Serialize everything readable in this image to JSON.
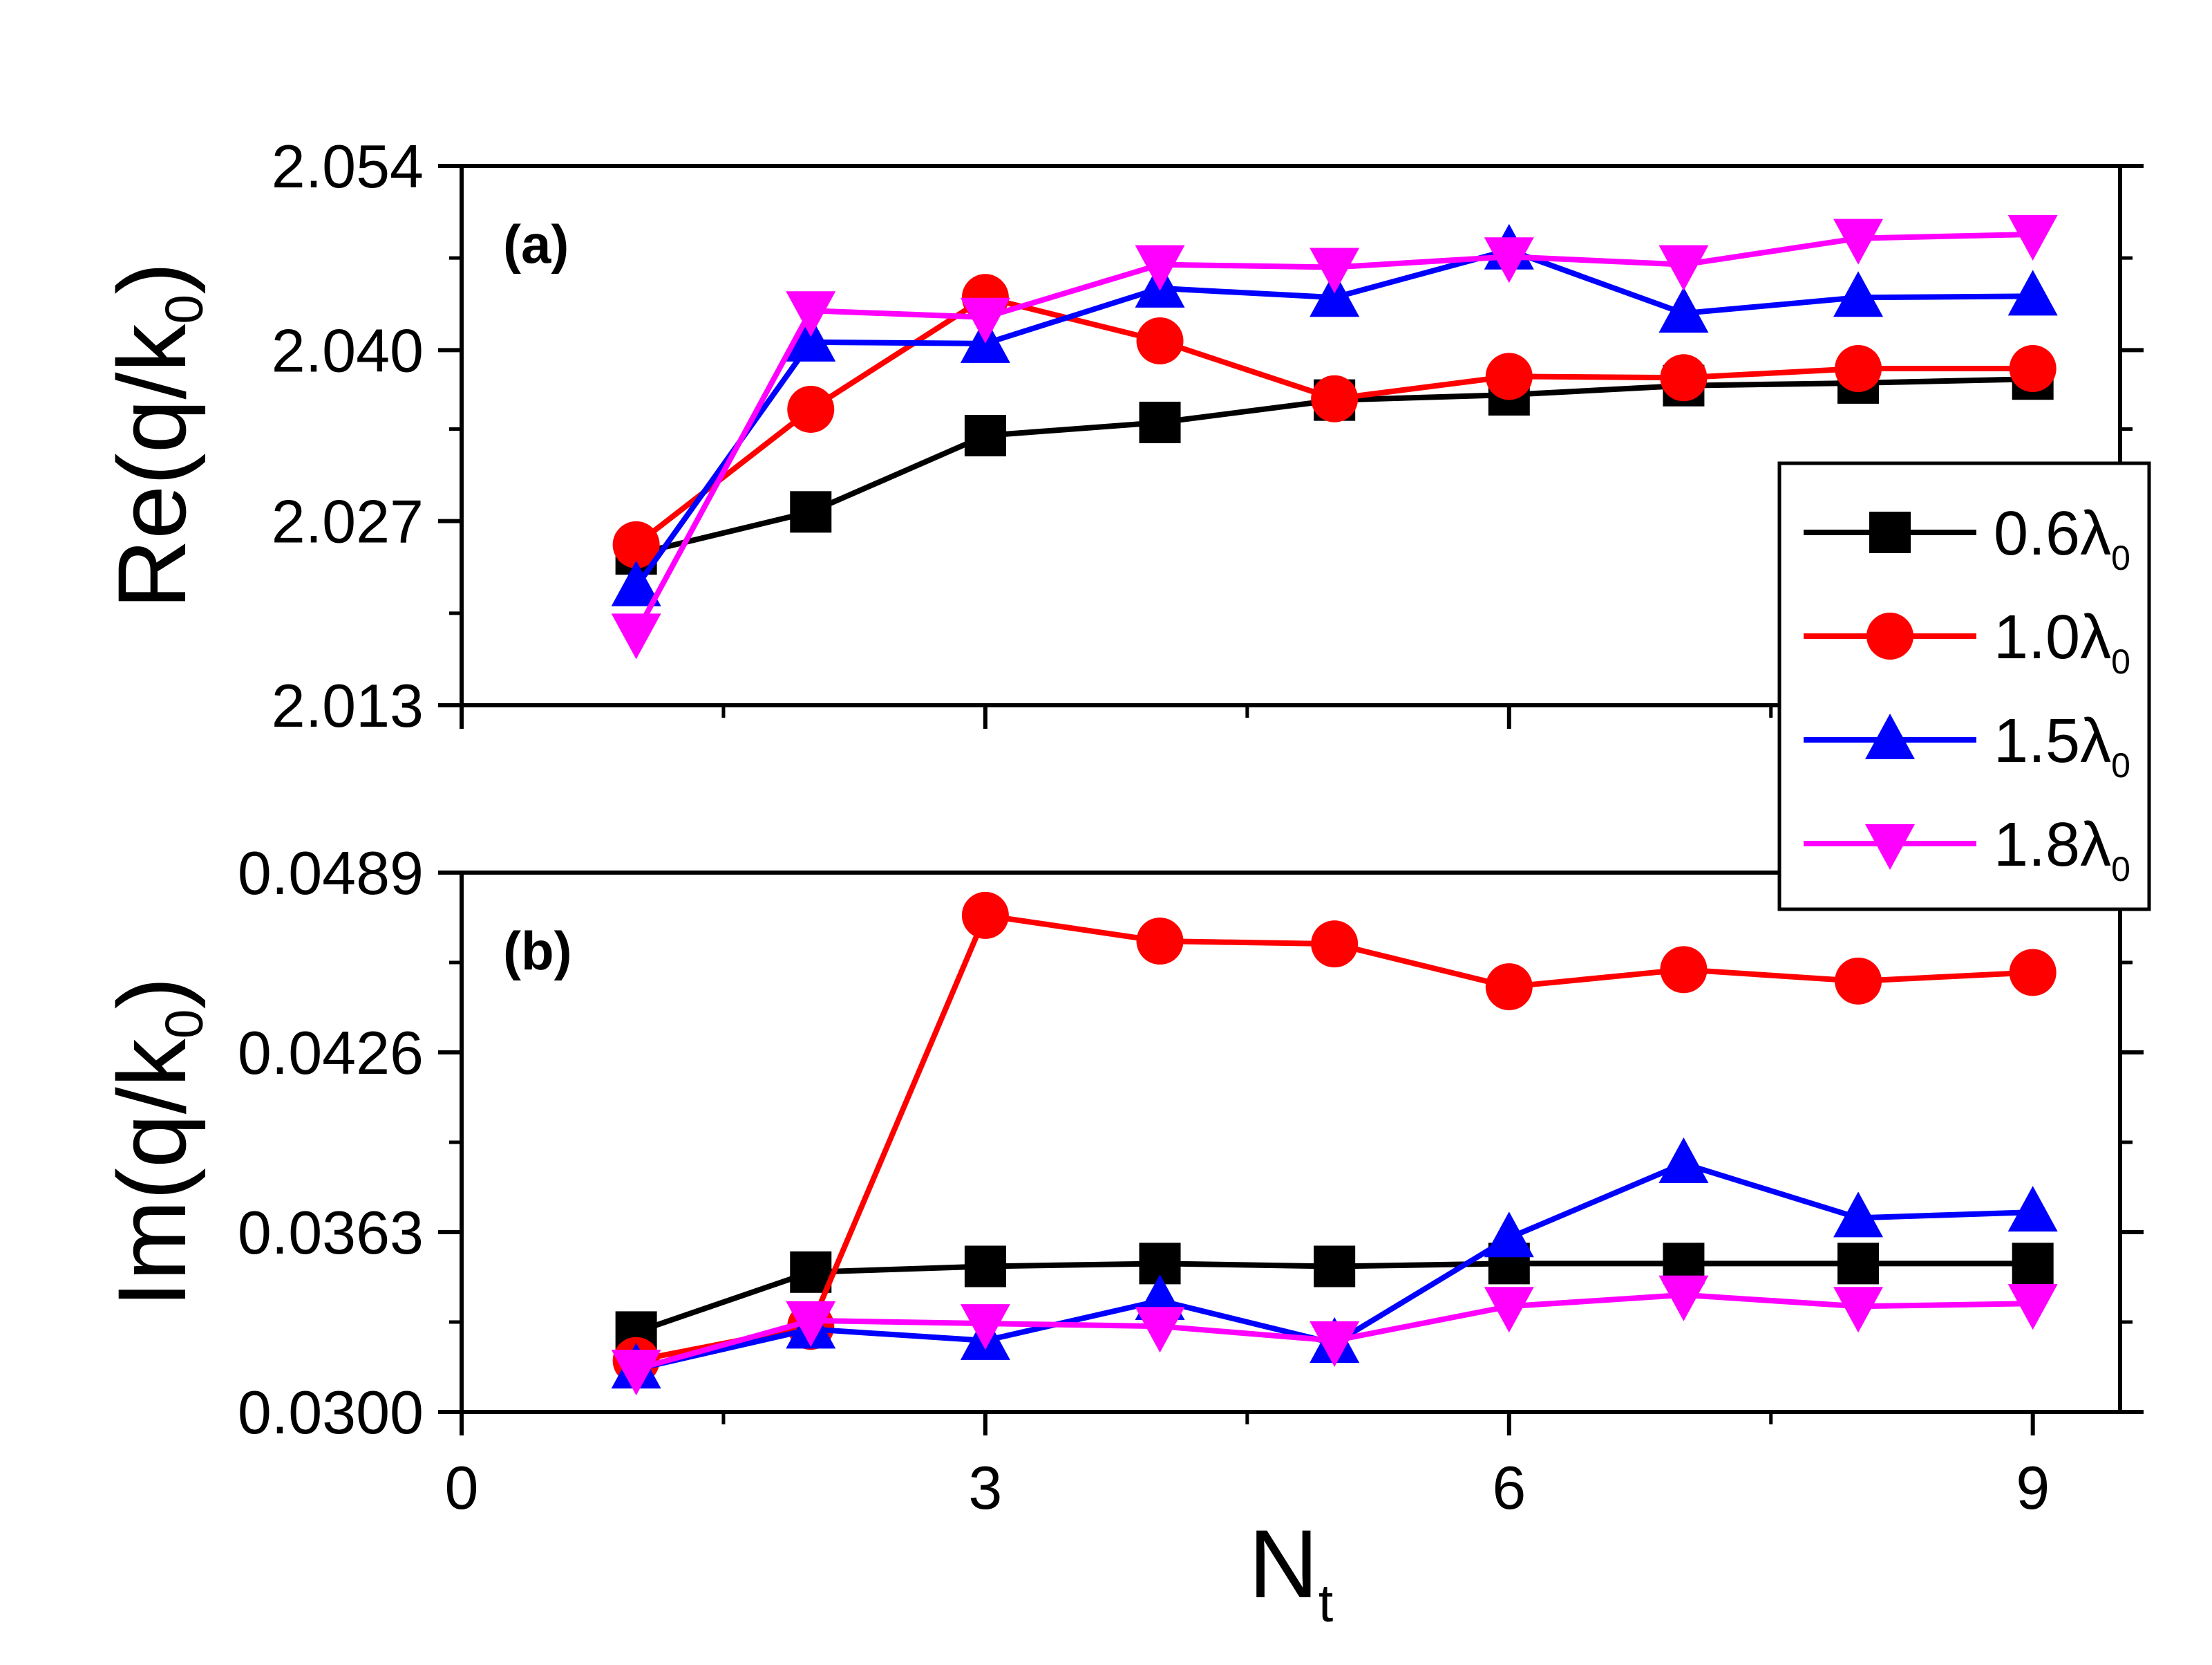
{
  "chart_data": [
    {
      "panel": "(a)",
      "type": "line",
      "xlabel": "N",
      "xlabel_subscript": "t",
      "ylabel": "Re(q/k",
      "ylabel_subscript": "0",
      "ylabel_suffix": ")",
      "xlim": [
        0,
        9.5
      ],
      "ylim": [
        2.013,
        2.054
      ],
      "xticks": [
        "0",
        "3",
        "6",
        "9"
      ],
      "yticks": [
        "2.013",
        "2.027",
        "2.040",
        "2.054"
      ],
      "x": [
        1,
        2,
        3,
        4,
        5,
        6,
        7,
        8,
        9
      ],
      "series": [
        {
          "name": "0.6λ₀",
          "label_main": "0.6λ",
          "label_sub": "0",
          "color": "#000000",
          "marker": "square",
          "values": [
            2.0245,
            2.0277,
            2.0335,
            2.0345,
            2.0362,
            2.0366,
            2.0373,
            2.0375,
            2.0378
          ]
        },
        {
          "name": "1.0λ₀",
          "label_main": "1.0λ",
          "label_sub": "0",
          "color": "#ff0000",
          "marker": "circle",
          "values": [
            2.0252,
            2.0355,
            2.044,
            2.0407,
            2.0363,
            2.038,
            2.0379,
            2.0386,
            2.0386
          ]
        },
        {
          "name": "1.5λ₀",
          "label_main": "1.5λ",
          "label_sub": "0",
          "color": "#0000ff",
          "marker": "triangle-up",
          "values": [
            2.022,
            2.0406,
            2.0405,
            2.0447,
            2.044,
            2.0476,
            2.0428,
            2.044,
            2.0441
          ]
        },
        {
          "name": "1.8λ₀",
          "label_main": "1.8λ",
          "label_sub": "0",
          "color": "#ff00ff",
          "marker": "triangle-down",
          "values": [
            2.0185,
            2.043,
            2.0425,
            2.0465,
            2.0463,
            2.0471,
            2.0465,
            2.0485,
            2.0488
          ]
        }
      ]
    },
    {
      "panel": "(b)",
      "type": "line",
      "xlabel": "N",
      "xlabel_subscript": "t",
      "ylabel": "Im(q/k",
      "ylabel_subscript": "0",
      "ylabel_suffix": ")",
      "xlim": [
        0,
        9.5
      ],
      "ylim": [
        0.03,
        0.0489
      ],
      "xticks": [
        "0",
        "3",
        "6",
        "9"
      ],
      "yticks": [
        "0.0300",
        "0.0363",
        "0.0426",
        "0.0489"
      ],
      "x": [
        1,
        2,
        3,
        4,
        5,
        6,
        7,
        8,
        9
      ],
      "series": [
        {
          "name": "0.6λ₀",
          "color": "#000000",
          "marker": "square",
          "values": [
            0.0328,
            0.0349,
            0.0351,
            0.0352,
            0.0351,
            0.0352,
            0.0352,
            0.0352,
            0.0352
          ]
        },
        {
          "name": "1.0λ₀",
          "color": "#ff0000",
          "marker": "circle",
          "values": [
            0.0318,
            0.033,
            0.0474,
            0.0465,
            0.0464,
            0.0449,
            0.0455,
            0.0451,
            0.0454
          ]
        },
        {
          "name": "1.5λ₀",
          "color": "#0000ff",
          "marker": "triangle-up",
          "values": [
            0.0315,
            0.0329,
            0.0325,
            0.0339,
            0.0324,
            0.0361,
            0.0387,
            0.0368,
            0.037
          ]
        },
        {
          "name": "1.8λ₀",
          "color": "#ff00ff",
          "marker": "triangle-down",
          "values": [
            0.0315,
            0.0332,
            0.0331,
            0.033,
            0.0325,
            0.0337,
            0.0341,
            0.0337,
            0.0338
          ]
        }
      ]
    }
  ]
}
